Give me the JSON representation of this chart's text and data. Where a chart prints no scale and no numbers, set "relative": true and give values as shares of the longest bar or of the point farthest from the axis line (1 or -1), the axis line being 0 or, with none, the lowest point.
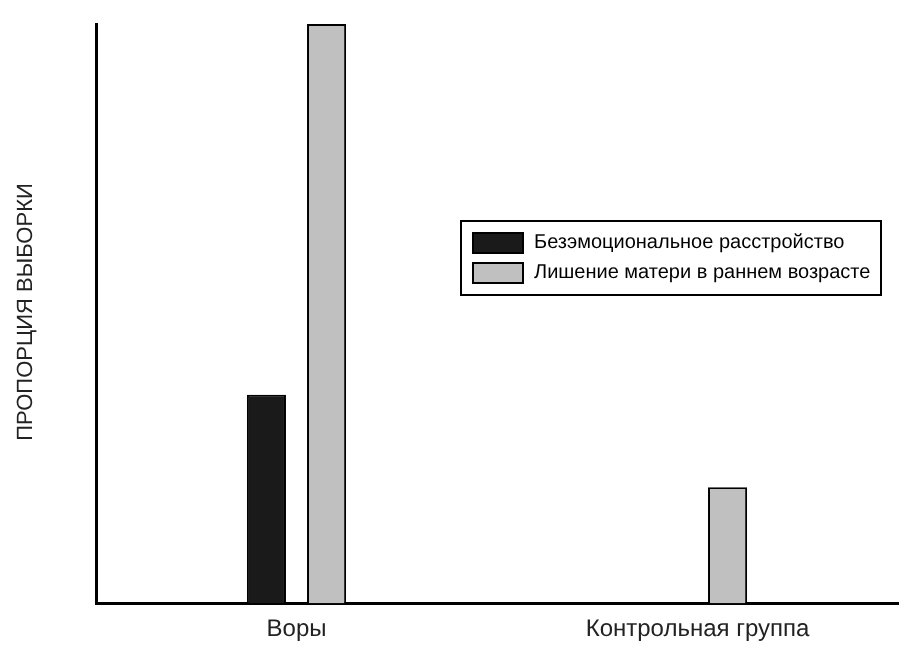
{
  "chart_data": {
    "type": "bar",
    "ylabel": "ПРОПОРЦИЯ ВЫБОРКИ",
    "categories": [
      "Воры",
      "Контрольная группа"
    ],
    "relative": true,
    "legend": "right",
    "grid": false,
    "series": [
      {
        "name": "Безэмоциональное расстройство",
        "color": "#1a1a1a",
        "values": [
          0.36,
          0
        ]
      },
      {
        "name": "Лишение матери в раннем возрасте",
        "color": "#c0c0c0",
        "values": [
          1,
          0.2
        ]
      }
    ]
  }
}
